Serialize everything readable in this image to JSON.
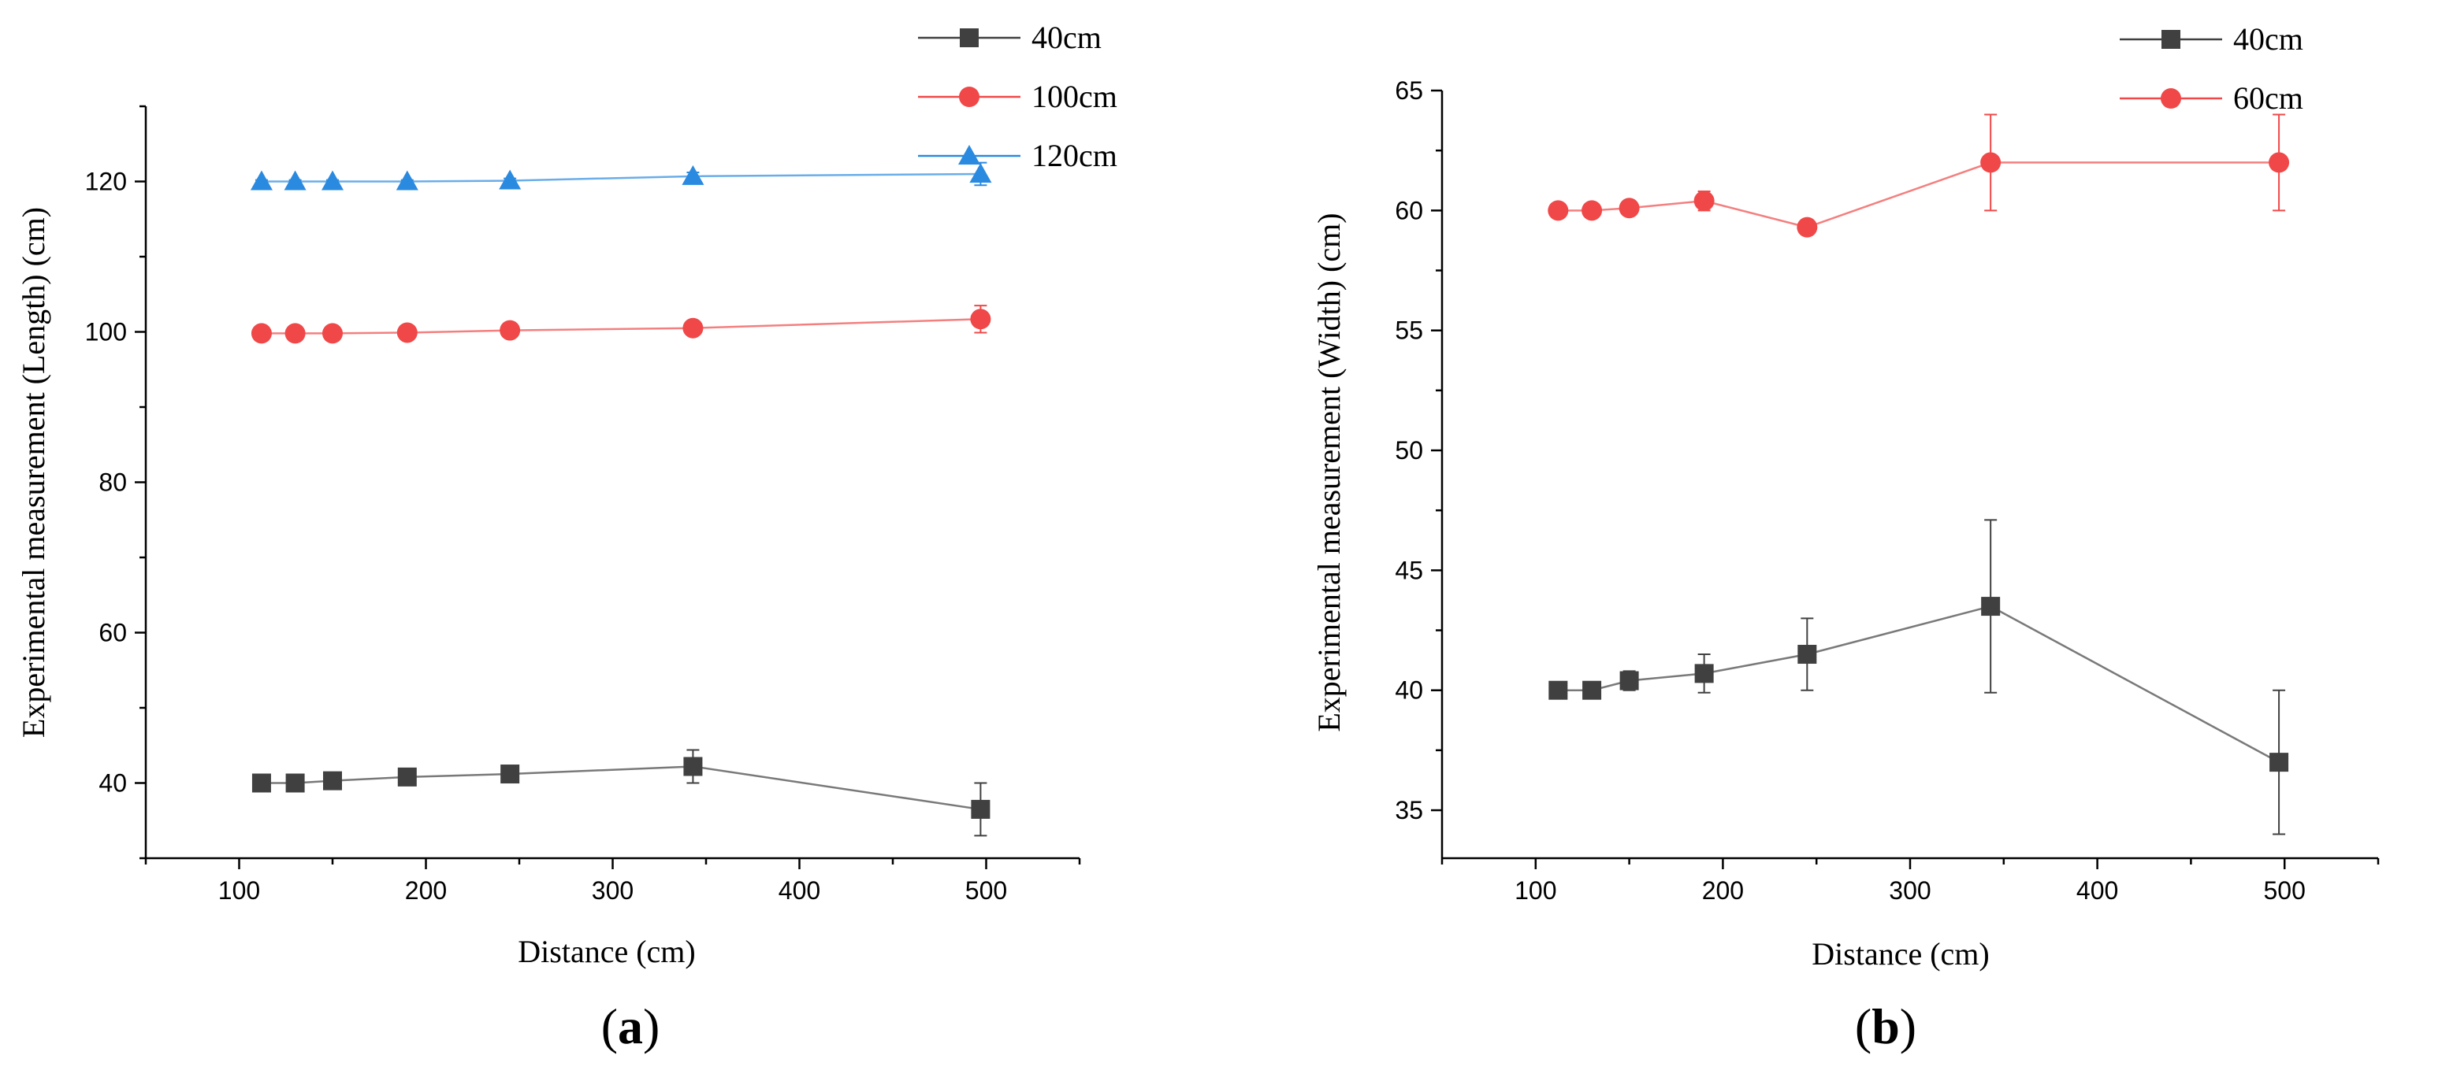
{
  "chart_data": [
    {
      "id": "a",
      "type": "line",
      "panel_label_open": "(",
      "panel_label_letter": "a",
      "panel_label_close": ")",
      "xlabel": "Distance (cm)",
      "ylabel": "Experimental measurement (Length) (cm)",
      "xlim": [
        50,
        550
      ],
      "ylim": [
        30,
        130
      ],
      "xticks": [
        100,
        200,
        300,
        400,
        500
      ],
      "yticks": [
        40,
        60,
        80,
        100,
        120
      ],
      "legend_position": "top-right-outside",
      "series": [
        {
          "name": "40cm",
          "color": "#404040",
          "marker": "square",
          "x": [
            112,
            130,
            150,
            190,
            245,
            343,
            497
          ],
          "y": [
            40.0,
            40.0,
            40.3,
            40.8,
            41.2,
            42.2,
            36.5
          ],
          "err": [
            0.3,
            0.3,
            0.4,
            0.5,
            0.8,
            2.2,
            3.5
          ]
        },
        {
          "name": "100cm",
          "color": "#f04848",
          "marker": "circle",
          "x": [
            112,
            130,
            150,
            190,
            245,
            343,
            497
          ],
          "y": [
            99.8,
            99.8,
            99.8,
            99.9,
            100.2,
            100.5,
            101.7
          ],
          "err": [
            0.3,
            0.3,
            0.3,
            0.3,
            0.4,
            0.5,
            1.8
          ]
        },
        {
          "name": "120cm",
          "color": "#2a8ae0",
          "marker": "triangle",
          "x": [
            112,
            130,
            150,
            190,
            245,
            343,
            497
          ],
          "y": [
            120.0,
            120.0,
            120.0,
            120.0,
            120.1,
            120.7,
            121.0
          ],
          "err": [
            0.2,
            0.2,
            0.2,
            0.2,
            0.3,
            0.5,
            1.5
          ]
        }
      ]
    },
    {
      "id": "b",
      "type": "line",
      "panel_label_open": "(",
      "panel_label_letter": "b",
      "panel_label_close": ")",
      "xlabel": "Distance (cm)",
      "ylabel": "Experimental measurement (Width) (cm)",
      "xlim": [
        50,
        550
      ],
      "ylim": [
        33,
        65
      ],
      "xticks": [
        100,
        200,
        300,
        400,
        500
      ],
      "yticks": [
        35,
        40,
        45,
        50,
        55,
        60,
        65
      ],
      "legend_position": "top-right",
      "series": [
        {
          "name": "40cm",
          "color": "#404040",
          "marker": "square",
          "x": [
            112,
            130,
            150,
            190,
            245,
            343,
            497
          ],
          "y": [
            40.0,
            40.0,
            40.4,
            40.7,
            41.5,
            43.5,
            37.0
          ],
          "err": [
            0.2,
            0.2,
            0.4,
            0.8,
            1.5,
            3.6,
            3.0
          ]
        },
        {
          "name": "60cm",
          "color": "#f04848",
          "marker": "circle",
          "x": [
            112,
            130,
            150,
            190,
            245,
            343,
            497
          ],
          "y": [
            60.0,
            60.0,
            60.1,
            60.4,
            59.3,
            62.0,
            62.0
          ],
          "err": [
            0.2,
            0.2,
            0.2,
            0.4,
            0.3,
            2.0,
            2.0
          ]
        }
      ]
    }
  ]
}
